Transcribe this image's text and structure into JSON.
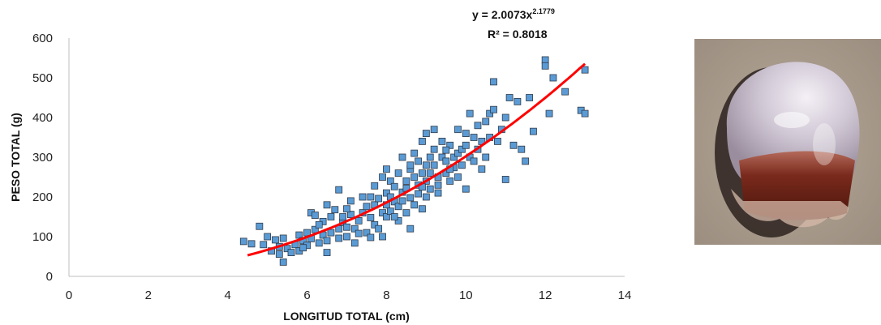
{
  "chart_data": {
    "type": "scatter",
    "title": "",
    "xlabel": "LONGITUD TOTAL (cm)",
    "ylabel": "PESO TOTAL (g)",
    "xlim": [
      0,
      14
    ],
    "ylim": [
      0,
      600
    ],
    "xticks": [
      0,
      2,
      4,
      6,
      8,
      10,
      12,
      14
    ],
    "yticks": [
      0,
      100,
      200,
      300,
      400,
      500,
      600
    ],
    "grid": false,
    "legend": "none",
    "series": [
      {
        "marker_color": "#5b9bd5",
        "points": [
          [
            4.4,
            88
          ],
          [
            4.6,
            82
          ],
          [
            4.8,
            126
          ],
          [
            4.9,
            80
          ],
          [
            5.0,
            100
          ],
          [
            5.1,
            64
          ],
          [
            5.2,
            92
          ],
          [
            5.3,
            56
          ],
          [
            5.3,
            75
          ],
          [
            5.4,
            36
          ],
          [
            5.4,
            96
          ],
          [
            5.5,
            70
          ],
          [
            5.6,
            60
          ],
          [
            5.7,
            80
          ],
          [
            5.8,
            104
          ],
          [
            5.8,
            64
          ],
          [
            5.9,
            90
          ],
          [
            6.0,
            110
          ],
          [
            6.0,
            78
          ],
          [
            6.1,
            160
          ],
          [
            6.1,
            95
          ],
          [
            6.2,
            154
          ],
          [
            6.2,
            118
          ],
          [
            6.3,
            84
          ],
          [
            6.4,
            104
          ],
          [
            6.4,
            138
          ],
          [
            6.5,
            60
          ],
          [
            6.5,
            90
          ],
          [
            6.5,
            180
          ],
          [
            6.6,
            110
          ],
          [
            6.6,
            150
          ],
          [
            6.7,
            168
          ],
          [
            6.8,
            120
          ],
          [
            6.8,
            96
          ],
          [
            6.8,
            218
          ],
          [
            6.9,
            136
          ],
          [
            7.0,
            124
          ],
          [
            7.0,
            100
          ],
          [
            7.1,
            190
          ],
          [
            7.1,
            156
          ],
          [
            7.2,
            84
          ],
          [
            7.2,
            120
          ],
          [
            7.3,
            140
          ],
          [
            7.4,
            200
          ],
          [
            7.4,
            160
          ],
          [
            7.5,
            110
          ],
          [
            7.5,
            176
          ],
          [
            7.6,
            98
          ],
          [
            7.6,
            148
          ],
          [
            7.7,
            228
          ],
          [
            7.7,
            180
          ],
          [
            7.7,
            130
          ],
          [
            7.8,
            120
          ],
          [
            7.8,
            196
          ],
          [
            7.9,
            160
          ],
          [
            7.9,
            250
          ],
          [
            7.9,
            100
          ],
          [
            8.0,
            210
          ],
          [
            8.0,
            180
          ],
          [
            8.0,
            150
          ],
          [
            8.0,
            270
          ],
          [
            8.1,
            200
          ],
          [
            8.1,
            240
          ],
          [
            8.1,
            164
          ],
          [
            8.2,
            188
          ],
          [
            8.2,
            226
          ],
          [
            8.3,
            176
          ],
          [
            8.3,
            140
          ],
          [
            8.3,
            260
          ],
          [
            8.4,
            212
          ],
          [
            8.4,
            190
          ],
          [
            8.4,
            300
          ],
          [
            8.5,
            160
          ],
          [
            8.5,
            240
          ],
          [
            8.5,
            222
          ],
          [
            8.6,
            120
          ],
          [
            8.6,
            198
          ],
          [
            8.6,
            270
          ],
          [
            8.7,
            250
          ],
          [
            8.7,
            180
          ],
          [
            8.7,
            310
          ],
          [
            8.8,
            230
          ],
          [
            8.8,
            208
          ],
          [
            8.8,
            290
          ],
          [
            8.9,
            260
          ],
          [
            8.9,
            170
          ],
          [
            8.9,
            340
          ],
          [
            9.0,
            280
          ],
          [
            9.0,
            240
          ],
          [
            9.0,
            200
          ],
          [
            9.0,
            360
          ],
          [
            9.1,
            300
          ],
          [
            9.1,
            260
          ],
          [
            9.1,
            220
          ],
          [
            9.2,
            320
          ],
          [
            9.2,
            280
          ],
          [
            9.2,
            370
          ],
          [
            9.3,
            250
          ],
          [
            9.3,
            230
          ],
          [
            9.4,
            300
          ],
          [
            9.4,
            340
          ],
          [
            9.5,
            260
          ],
          [
            9.5,
            290
          ],
          [
            9.6,
            330
          ],
          [
            9.6,
            240
          ],
          [
            9.7,
            300
          ],
          [
            9.7,
            274
          ],
          [
            9.8,
            370
          ],
          [
            9.8,
            250
          ],
          [
            9.8,
            310
          ],
          [
            9.9,
            320
          ],
          [
            9.9,
            280
          ],
          [
            10.0,
            220
          ],
          [
            10.0,
            360
          ],
          [
            10.0,
            330
          ],
          [
            10.1,
            300
          ],
          [
            10.1,
            410
          ],
          [
            10.2,
            350
          ],
          [
            10.3,
            320
          ],
          [
            10.3,
            380
          ],
          [
            10.4,
            340
          ],
          [
            10.5,
            300
          ],
          [
            10.5,
            390
          ],
          [
            10.6,
            410
          ],
          [
            10.6,
            350
          ],
          [
            10.7,
            420
          ],
          [
            10.7,
            490
          ],
          [
            10.8,
            340
          ],
          [
            10.9,
            370
          ],
          [
            11.0,
            400
          ],
          [
            11.0,
            244
          ],
          [
            11.1,
            450
          ],
          [
            11.2,
            330
          ],
          [
            11.3,
            440
          ],
          [
            11.4,
            320
          ],
          [
            11.5,
            290
          ],
          [
            11.6,
            450
          ],
          [
            11.7,
            365
          ],
          [
            12.0,
            545
          ],
          [
            12.0,
            530
          ],
          [
            12.1,
            410
          ],
          [
            12.2,
            500
          ],
          [
            12.5,
            465
          ],
          [
            12.9,
            418
          ],
          [
            13.0,
            520
          ],
          [
            13.0,
            410
          ],
          [
            6.3,
            130
          ],
          [
            7.0,
            170
          ],
          [
            7.6,
            200
          ],
          [
            8.2,
            150
          ],
          [
            8.6,
            280
          ],
          [
            9.3,
            210
          ],
          [
            9.6,
            270
          ],
          [
            10.2,
            290
          ],
          [
            6.9,
            150
          ],
          [
            7.3,
            108
          ],
          [
            8.9,
            225
          ],
          [
            9.5,
            318
          ],
          [
            10.4,
            270
          ],
          [
            5.9,
            72
          ]
        ]
      },
      {
        "kind": "trendline",
        "model": "power",
        "coef": 2.0073,
        "exponent": 2.1779,
        "x_range": [
          4.5,
          13.0
        ],
        "line_color": "#ff0000"
      }
    ],
    "annotations": {
      "equation_prefix": "y = 2.0073x",
      "equation_exponent": "2.1779",
      "r2": "R² = 0.8018"
    }
  },
  "photo": {
    "icon": "jellyfish-photo",
    "colors": {
      "sand": "#a89a8c",
      "bell": "#d8d0dc",
      "band": "#6e2418"
    }
  }
}
